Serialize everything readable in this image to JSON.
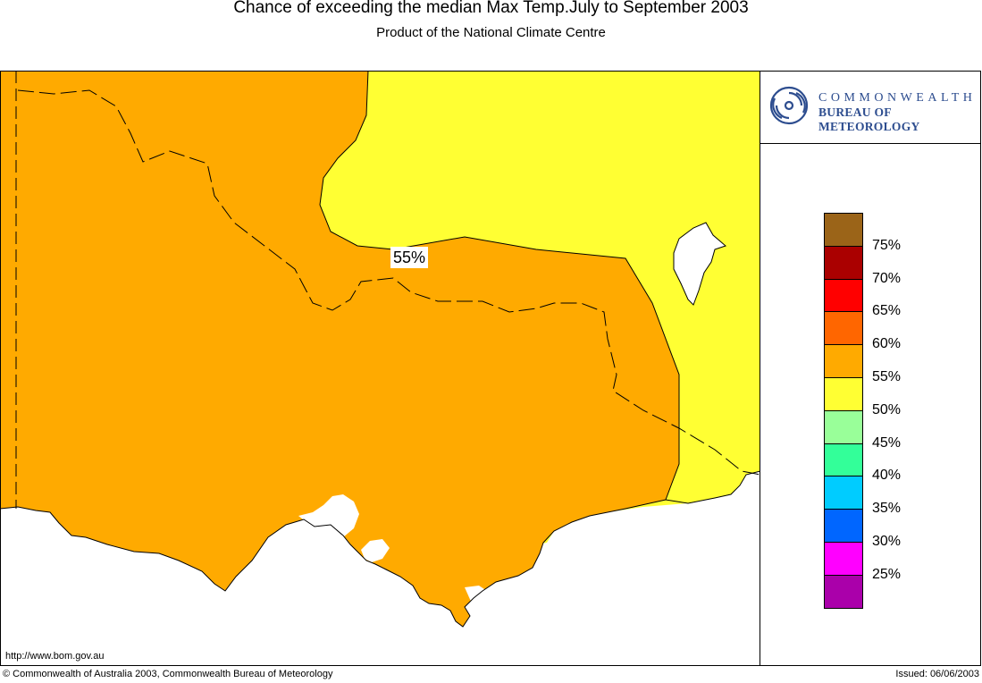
{
  "header": {
    "title": "Chance of exceeding the median Max Temp.July to September 2003",
    "subtitle": "Product of the National Climate Centre"
  },
  "logo": {
    "line1": "COMMONWEALTH",
    "line2": "BUREAU OF METEOROLOGY",
    "color": "#2d4d8f"
  },
  "map": {
    "region_label": "55%",
    "url": "http://www.bom.gov.au",
    "colors": {
      "orange_55": "#ffaa00",
      "yellow_50": "#ffff33",
      "sea": "#ffffff"
    }
  },
  "legend": {
    "items": [
      {
        "label": "75%",
        "color": "#9b6418"
      },
      {
        "label": "70%",
        "color": "#aa0000"
      },
      {
        "label": "65%",
        "color": "#ff0000"
      },
      {
        "label": "60%",
        "color": "#ff6600"
      },
      {
        "label": "55%",
        "color": "#ffaa00"
      },
      {
        "label": "50%",
        "color": "#ffff33"
      },
      {
        "label": "45%",
        "color": "#99ff99"
      },
      {
        "label": "40%",
        "color": "#33ff99"
      },
      {
        "label": "35%",
        "color": "#00ccff"
      },
      {
        "label": "30%",
        "color": "#0066ff"
      },
      {
        "label": "25%",
        "color": "#ff00ff"
      },
      {
        "label": "",
        "color": "#aa00aa"
      }
    ]
  },
  "footer": {
    "copyright": "© Commonwealth of Australia 2003, Commonwealth Bureau of Meteorology",
    "issued": "Issued: 06/06/2003"
  }
}
